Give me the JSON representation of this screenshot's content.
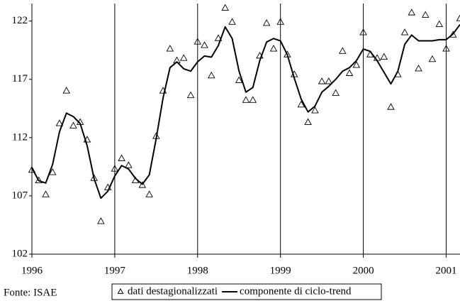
{
  "chart_data": {
    "type": "line",
    "footnote": "Fonte: ISAE",
    "x": [
      1996,
      1996.083,
      1996.167,
      1996.25,
      1996.333,
      1996.417,
      1996.5,
      1996.583,
      1996.667,
      1996.75,
      1996.833,
      1996.917,
      1997,
      1997.083,
      1997.167,
      1997.25,
      1997.333,
      1997.417,
      1997.5,
      1997.583,
      1997.667,
      1997.75,
      1997.833,
      1997.917,
      1998,
      1998.083,
      1998.167,
      1998.25,
      1998.333,
      1998.417,
      1998.5,
      1998.583,
      1998.667,
      1998.75,
      1998.833,
      1998.917,
      1999,
      1999.083,
      1999.167,
      1999.25,
      1999.333,
      1999.417,
      1999.5,
      1999.583,
      1999.667,
      1999.75,
      1999.833,
      1999.917,
      2000,
      2000.083,
      2000.167,
      2000.25,
      2000.333,
      2000.417,
      2000.5,
      2000.583,
      2000.667,
      2000.75,
      2000.833,
      2000.917,
      2001,
      2001.083,
      2001.167
    ],
    "series": [
      {
        "name": "dati destagionalizzati",
        "mode": "markers",
        "marker": "triangle",
        "color": "#000000",
        "values": [
          109.2,
          108.3,
          107.1,
          109.0,
          113.2,
          116.0,
          113.0,
          113.3,
          111.8,
          108.5,
          104.8,
          107.7,
          109.3,
          110.2,
          109.6,
          108.3,
          107.9,
          107.1,
          112.1,
          116.0,
          119.6,
          118.6,
          118.8,
          115.6,
          120.2,
          119.9,
          117.3,
          120.5,
          123.1,
          121.9,
          116.9,
          115.2,
          115.2,
          119.0,
          121.8,
          119.6,
          121.9,
          119.1,
          117.4,
          114.8,
          113.3,
          114.3,
          116.8,
          116.8,
          115.8,
          119.4,
          117.5,
          118.2,
          121.0,
          119.1,
          118.8,
          118.9,
          114.6,
          117.4,
          121.0,
          122.7,
          117.9,
          122.5,
          118.7,
          121.7,
          119.6,
          120.8,
          122.2
        ]
      },
      {
        "name": "componente di ciclo-trend",
        "mode": "line",
        "color": "#000000",
        "values": [
          109.4,
          108.3,
          108.1,
          109.7,
          112.5,
          114.1,
          113.8,
          113.2,
          111.3,
          108.5,
          106.8,
          107.4,
          108.7,
          109.6,
          109.3,
          108.5,
          108.0,
          108.8,
          111.9,
          115.4,
          118.0,
          118.5,
          117.9,
          117.7,
          118.5,
          119.0,
          118.9,
          119.9,
          121.5,
          120.5,
          117.7,
          115.9,
          116.3,
          118.6,
          120.2,
          120.5,
          120.3,
          119.1,
          117.1,
          115.3,
          114.2,
          114.7,
          115.9,
          116.4,
          117.0,
          117.7,
          118.0,
          118.6,
          119.6,
          119.4,
          118.6,
          117.6,
          116.6,
          117.7,
          120.0,
          120.8,
          120.3,
          120.3,
          120.3,
          120.4,
          120.4,
          120.9,
          121.7
        ]
      }
    ],
    "xlim": [
      1996,
      2001.167
    ],
    "xticks": [
      1996,
      1997,
      1998,
      1999,
      2000,
      2001
    ],
    "x_grid": true,
    "ylim": [
      102,
      123.5
    ],
    "yticks": [
      102,
      107,
      112,
      117,
      122
    ],
    "legend": "bottom"
  }
}
